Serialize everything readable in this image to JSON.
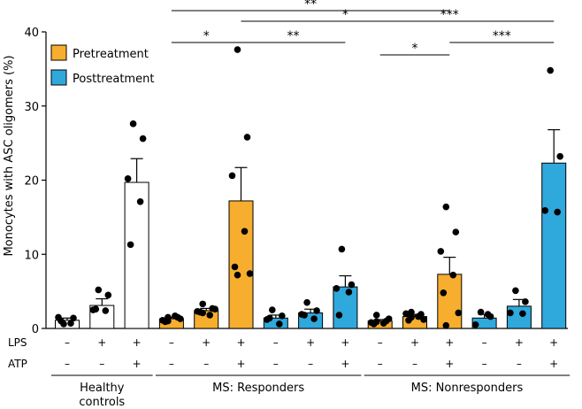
{
  "chart_data": {
    "type": "bar",
    "ylabel": "Monocytes with ASC oligomers (%)",
    "ylim": [
      0,
      40
    ],
    "yticks": [
      0,
      10,
      20,
      30,
      40
    ],
    "legend": {
      "position": "top-left",
      "entries": [
        {
          "label": "Pretreatment",
          "color": "#F7AE2E"
        },
        {
          "label": "Posttreatment",
          "color": "#2FA8DC"
        }
      ]
    },
    "row_labels": [
      "LPS",
      "ATP"
    ],
    "groups": [
      {
        "label": [
          "Healthy",
          "controls"
        ],
        "bars": [
          0,
          1,
          2
        ]
      },
      {
        "label": [
          "MS: Responders"
        ],
        "bars": [
          3,
          4,
          5,
          6,
          7,
          8
        ]
      },
      {
        "label": [
          "MS: Nonresponders"
        ],
        "bars": [
          9,
          10,
          11,
          12,
          13,
          14
        ]
      }
    ],
    "bars": [
      {
        "condition": "healthy",
        "lps": "–",
        "atp": "–",
        "mean": 1.1,
        "sem": 0.3,
        "points": [
          0.6,
          1.4,
          1.5,
          0.7,
          1.0
        ]
      },
      {
        "condition": "healthy",
        "lps": "+",
        "atp": "–",
        "mean": 3.1,
        "sem": 0.9,
        "points": [
          5.2,
          4.5,
          2.5,
          2.4,
          2.6
        ]
      },
      {
        "condition": "healthy",
        "lps": "+",
        "atp": "+",
        "mean": 19.7,
        "sem": 3.2,
        "points": [
          27.6,
          25.6,
          20.2,
          17.1,
          11.3
        ]
      },
      {
        "condition": "pretreatment",
        "lps": "–",
        "atp": "–",
        "mean": 1.3,
        "sem": 0.2,
        "points": [
          1.0,
          1.5,
          1.1,
          1.7,
          0.9,
          1.3,
          1.5
        ]
      },
      {
        "condition": "pretreatment",
        "lps": "+",
        "atp": "–",
        "mean": 2.4,
        "sem": 0.3,
        "points": [
          3.3,
          2.7,
          2.3,
          1.8,
          2.2,
          2.6,
          2.1
        ]
      },
      {
        "condition": "pretreatment",
        "lps": "+",
        "atp": "+",
        "mean": 17.2,
        "sem": 4.5,
        "points": [
          37.6,
          25.8,
          20.6,
          13.1,
          8.3,
          7.4,
          7.2
        ]
      },
      {
        "condition": "posttreatment",
        "lps": "–",
        "atp": "–",
        "mean": 1.4,
        "sem": 0.4,
        "points": [
          2.5,
          1.7,
          1.2,
          0.6,
          1.4
        ]
      },
      {
        "condition": "posttreatment",
        "lps": "+",
        "atp": "–",
        "mean": 2.1,
        "sem": 0.5,
        "points": [
          3.5,
          2.4,
          1.9,
          1.3,
          1.8
        ]
      },
      {
        "condition": "posttreatment",
        "lps": "+",
        "atp": "+",
        "mean": 5.6,
        "sem": 1.5,
        "points": [
          10.7,
          5.9,
          5.4,
          4.9,
          1.8
        ]
      },
      {
        "condition": "pretreatment",
        "lps": "–",
        "atp": "–",
        "mean": 1.0,
        "sem": 0.2,
        "points": [
          1.8,
          1.0,
          0.8,
          0.7,
          0.6,
          1.3,
          0.9
        ]
      },
      {
        "condition": "pretreatment",
        "lps": "+",
        "atp": "–",
        "mean": 1.6,
        "sem": 0.3,
        "points": [
          2.2,
          1.9,
          2.0,
          1.6,
          1.1,
          1.2,
          1.5
        ]
      },
      {
        "condition": "pretreatment",
        "lps": "+",
        "atp": "+",
        "mean": 7.3,
        "sem": 2.3,
        "points": [
          16.4,
          13.0,
          10.4,
          7.2,
          4.8,
          2.1,
          0.4
        ]
      },
      {
        "condition": "posttreatment",
        "lps": "–",
        "atp": "–",
        "mean": 1.4,
        "sem": 0.5,
        "points": [
          2.2,
          1.6,
          0.5,
          1.9
        ]
      },
      {
        "condition": "posttreatment",
        "lps": "+",
        "atp": "–",
        "mean": 3.0,
        "sem": 0.9,
        "points": [
          5.1,
          3.6,
          2.1,
          2.0
        ]
      },
      {
        "condition": "posttreatment",
        "lps": "+",
        "atp": "+",
        "mean": 22.3,
        "sem": 4.5,
        "points": [
          34.8,
          23.2,
          15.9,
          15.7
        ]
      }
    ],
    "significance": [
      {
        "from_bar": 3,
        "to_bar": 5,
        "label": "*"
      },
      {
        "from_bar": 5,
        "to_bar": 8,
        "label": "**"
      },
      {
        "from_bar": 5,
        "to_bar": 11,
        "label": "*"
      },
      {
        "from_bar": 3,
        "to_bar": 11,
        "label": "**"
      },
      {
        "from_bar": 8,
        "to_bar": 14,
        "label": "***"
      },
      {
        "from_bar": 11,
        "to_bar": 14,
        "label": "***"
      },
      {
        "from_bar": 9,
        "to_bar": 11,
        "label": "*"
      }
    ]
  },
  "colors": {
    "healthy": "#FFFFFF",
    "pretreatment": "#F7AE2E",
    "posttreatment": "#2FA8DC"
  }
}
